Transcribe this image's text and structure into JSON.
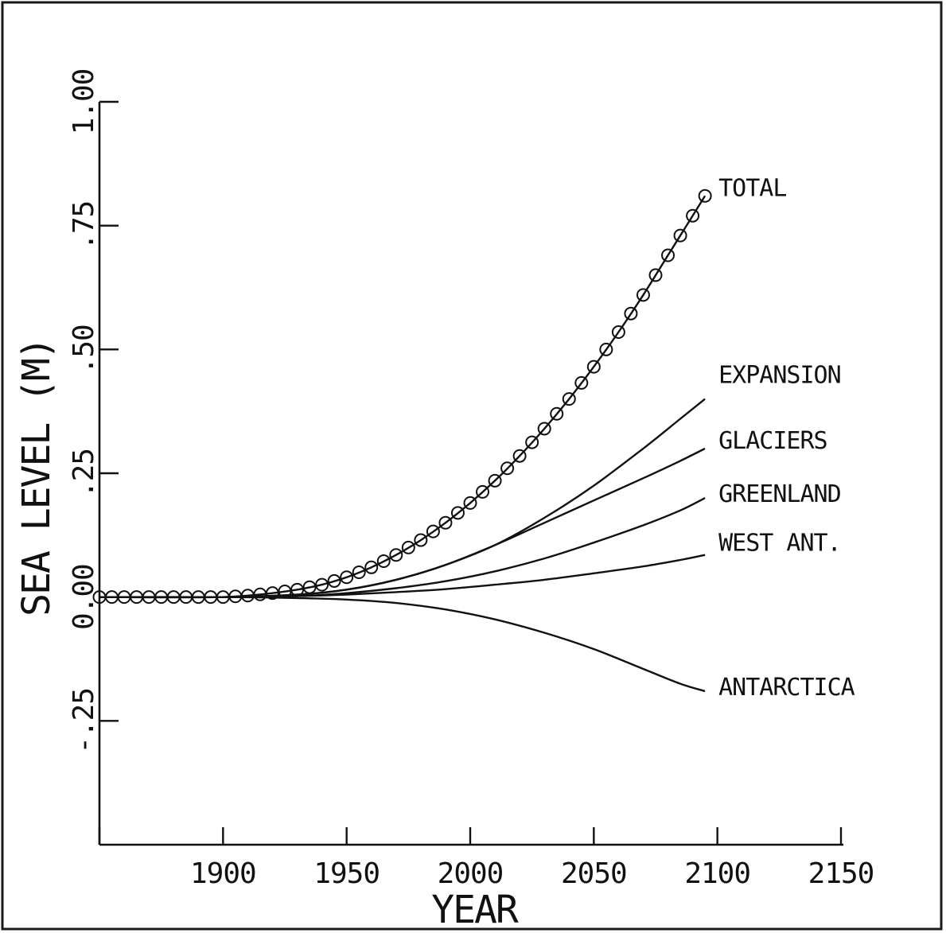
{
  "chart_data": {
    "type": "line",
    "xlabel": "YEAR",
    "ylabel": "SEA LEVEL (M)",
    "xlim": [
      1850,
      2150
    ],
    "ylim": [
      -0.5,
      1.0
    ],
    "xticks": [
      1850,
      1900,
      1950,
      2000,
      2050,
      2100,
      2150
    ],
    "xtick_labels": [
      "1900",
      "1950",
      "2000",
      "2050",
      "2100",
      "2150"
    ],
    "xtick_label_values": [
      1900,
      1950,
      2000,
      2050,
      2100,
      2150
    ],
    "yticks": [
      -0.25,
      0.0,
      0.25,
      0.5,
      0.75,
      1.0
    ],
    "ytick_labels": [
      "-.25",
      "0.00",
      ".25",
      ".50",
      ".75",
      "1.00"
    ],
    "ytick_label_values": [
      -0.25,
      0.0,
      0.25,
      0.5,
      0.75,
      1.0
    ],
    "grid": false,
    "legend": "direct labels at right end of lines",
    "series": [
      {
        "name": "TOTAL",
        "markers": "circle",
        "x": [
          1850,
          1860,
          1870,
          1880,
          1890,
          1900,
          1910,
          1920,
          1930,
          1940,
          1950,
          1960,
          1970,
          1980,
          1990,
          2000,
          2010,
          2020,
          2030,
          2040,
          2050,
          2060,
          2070,
          2080,
          2090,
          2095
        ],
        "y": [
          0.0,
          0.0,
          0.0,
          0.0,
          0.0,
          0.0,
          0.003,
          0.008,
          0.015,
          0.025,
          0.04,
          0.06,
          0.085,
          0.115,
          0.15,
          0.19,
          0.235,
          0.285,
          0.34,
          0.4,
          0.465,
          0.535,
          0.61,
          0.69,
          0.77,
          0.81
        ]
      },
      {
        "name": "EXPANSION",
        "markers": "none",
        "x": [
          1850,
          1900,
          1930,
          1950,
          1970,
          1990,
          2010,
          2030,
          2050,
          2070,
          2085,
          2095
        ],
        "y": [
          0.0,
          0.0,
          0.005,
          0.015,
          0.035,
          0.065,
          0.105,
          0.16,
          0.225,
          0.3,
          0.36,
          0.4
        ]
      },
      {
        "name": "GLACIERS",
        "markers": "none",
        "x": [
          1850,
          1900,
          1930,
          1950,
          1970,
          1990,
          2010,
          2030,
          2050,
          2070,
          2085,
          2095
        ],
        "y": [
          0.0,
          0.0,
          0.005,
          0.015,
          0.035,
          0.065,
          0.105,
          0.15,
          0.195,
          0.24,
          0.275,
          0.3
        ]
      },
      {
        "name": "GREENLAND",
        "markers": "none",
        "x": [
          1850,
          1900,
          1930,
          1950,
          1970,
          1990,
          2010,
          2030,
          2050,
          2070,
          2085,
          2095
        ],
        "y": [
          0.0,
          0.0,
          0.002,
          0.008,
          0.018,
          0.032,
          0.052,
          0.078,
          0.11,
          0.145,
          0.175,
          0.2
        ]
      },
      {
        "name": "WEST ANT.",
        "markers": "none",
        "x": [
          1850,
          1900,
          1930,
          1950,
          1970,
          1990,
          2010,
          2030,
          2050,
          2070,
          2085,
          2095
        ],
        "y": [
          0.0,
          0.0,
          0.002,
          0.005,
          0.01,
          0.016,
          0.025,
          0.035,
          0.048,
          0.062,
          0.075,
          0.085
        ]
      },
      {
        "name": "ANTARCTICA",
        "markers": "none",
        "x": [
          1850,
          1900,
          1930,
          1950,
          1970,
          1990,
          2010,
          2030,
          2050,
          2070,
          2085,
          2095
        ],
        "y": [
          0.0,
          0.0,
          -0.002,
          -0.005,
          -0.012,
          -0.025,
          -0.045,
          -0.072,
          -0.105,
          -0.145,
          -0.175,
          -0.19
        ]
      }
    ]
  }
}
